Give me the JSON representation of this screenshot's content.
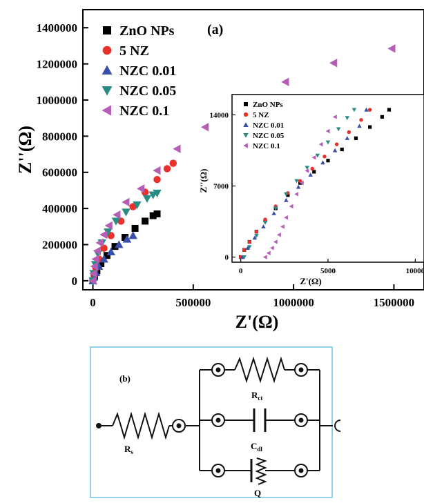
{
  "chart_data": [
    {
      "type": "scatter",
      "panel_label": "(a)",
      "xlabel": "Z'(Ω)",
      "ylabel": "Z''(Ω)",
      "xlim": [
        -50000,
        1650000
      ],
      "ylim": [
        -50000,
        1500000
      ],
      "x_ticks": [
        {
          "value": 0,
          "label": "0"
        },
        {
          "value": 500000,
          "label": "500000"
        },
        {
          "value": 1000000,
          "label": "1000000"
        },
        {
          "value": 1500000,
          "label": "1500000"
        }
      ],
      "y_ticks": [
        {
          "value": 0,
          "label": "0"
        },
        {
          "value": 200000,
          "label": "200000"
        },
        {
          "value": 400000,
          "label": "400000"
        },
        {
          "value": 600000,
          "label": "600000"
        },
        {
          "value": 800000,
          "label": "800000"
        },
        {
          "value": 1000000,
          "label": "1000000"
        },
        {
          "value": 1200000,
          "label": "1200000"
        },
        {
          "value": 1400000,
          "label": "1400000"
        }
      ],
      "legend_position": "top-left",
      "series": [
        {
          "name": "ZnO NPs",
          "marker": "square",
          "color": "#000000",
          "x": [
            0,
            8000,
            20000,
            40000,
            70000,
            110000,
            160000,
            210000,
            260000,
            300000,
            320000
          ],
          "y": [
            0,
            25000,
            55000,
            95000,
            140000,
            190000,
            240000,
            290000,
            330000,
            360000,
            370000
          ]
        },
        {
          "name": "5 NZ",
          "marker": "circle",
          "color": "#e8312a",
          "x": [
            0,
            6000,
            15000,
            30000,
            55000,
            90000,
            140000,
            200000,
            260000,
            320000,
            370000,
            400000
          ],
          "y": [
            0,
            30000,
            70000,
            120000,
            180000,
            250000,
            330000,
            410000,
            490000,
            560000,
            620000,
            650000
          ]
        },
        {
          "name": "NZC 0.01",
          "marker": "triangle-up",
          "color": "#3a4fa8",
          "x": [
            0,
            5000,
            15000,
            30000,
            55000,
            90000,
            130000,
            170000,
            200000
          ],
          "y": [
            0,
            20000,
            45000,
            80000,
            120000,
            160000,
            200000,
            230000,
            250000
          ]
        },
        {
          "name": "NZC 0.05",
          "marker": "triangle-down",
          "color": "#2a8a84",
          "x": [
            0,
            4000,
            12000,
            25000,
            45000,
            75000,
            115000,
            165000,
            220000,
            270000,
            300000,
            320000
          ],
          "y": [
            0,
            40000,
            90000,
            150000,
            210000,
            270000,
            330000,
            380000,
            420000,
            455000,
            475000,
            485000
          ]
        },
        {
          "name": "NZC 0.1",
          "marker": "triangle-left",
          "color": "#b45fb5",
          "x": [
            0,
            3000,
            8000,
            14000,
            22000,
            35000,
            55000,
            80000,
            120000,
            165000,
            240000,
            320000,
            420000,
            560000,
            760000,
            960000,
            1200000,
            1490000
          ],
          "y": [
            0,
            40000,
            80000,
            120000,
            165000,
            210000,
            255000,
            305000,
            365000,
            435000,
            510000,
            610000,
            730000,
            850000,
            975000,
            1100000,
            1205000,
            1285000
          ]
        }
      ]
    },
    {
      "type": "scatter",
      "role": "inset",
      "xlabel": "Z'(Ω)",
      "ylabel": "Z''(Ω)",
      "xlim": [
        -500,
        10500
      ],
      "ylim": [
        -500,
        16000
      ],
      "x_ticks": [
        {
          "value": 0,
          "label": "0"
        },
        {
          "value": 5000,
          "label": "5000"
        },
        {
          "value": 10000,
          "label": "10000"
        }
      ],
      "y_ticks": [
        {
          "value": 0,
          "label": "0"
        },
        {
          "value": 7000,
          "label": "7000"
        },
        {
          "value": 14000,
          "label": "14000"
        }
      ],
      "legend_position": "top-left",
      "series": [
        {
          "name": "ZnO NPs",
          "marker": "square",
          "color": "#000000",
          "x": [
            0,
            200,
            500,
            900,
            1400,
            2000,
            2700,
            3400,
            4200,
            5000,
            5800,
            6600,
            7400,
            8100,
            8500
          ],
          "y": [
            0,
            700,
            1500,
            2500,
            3600,
            4800,
            6100,
            7300,
            8400,
            9500,
            10600,
            11700,
            12800,
            13800,
            14500
          ]
        },
        {
          "name": "5 NZ",
          "marker": "circle",
          "color": "#e8312a",
          "x": [
            0,
            200,
            500,
            900,
            1400,
            2000,
            2700,
            3400,
            4100,
            4800,
            5500,
            6200,
            6900,
            7400
          ],
          "y": [
            0,
            700,
            1500,
            2500,
            3700,
            5000,
            6300,
            7500,
            8700,
            9900,
            11100,
            12300,
            13500,
            14500
          ]
        },
        {
          "name": "NZC 0.01",
          "marker": "triangle-up",
          "color": "#3a4fa8",
          "x": [
            100,
            400,
            800,
            1300,
            1900,
            2600,
            3300,
            4000,
            4700,
            5400,
            6100,
            6800,
            7200
          ],
          "y": [
            0,
            900,
            1900,
            3000,
            4300,
            5600,
            6900,
            8100,
            9300,
            10500,
            11700,
            12900,
            14500
          ]
        },
        {
          "name": "NZC 0.05",
          "marker": "triangle-down",
          "color": "#2a8a84",
          "x": [
            200,
            500,
            900,
            1400,
            2000,
            2600,
            3200,
            3800,
            4400,
            5000,
            5600,
            6100,
            6500
          ],
          "y": [
            0,
            1000,
            2100,
            3400,
            4800,
            6200,
            7500,
            8800,
            10000,
            11300,
            12600,
            13700,
            14500
          ]
        },
        {
          "name": "NZC 0.1",
          "marker": "triangle-left",
          "color": "#b45fb5",
          "x": [
            1400,
            1600,
            1800,
            2000,
            2200,
            2400,
            2600,
            2900,
            3200,
            3500,
            3800,
            4200,
            4600,
            5000,
            5400
          ],
          "y": [
            0,
            400,
            900,
            1500,
            2200,
            3000,
            3900,
            5000,
            6200,
            7300,
            8500,
            9800,
            11100,
            12400,
            13800
          ]
        }
      ]
    }
  ],
  "circuit": {
    "panel_label": "(b)",
    "rs_label": "R",
    "rs_sub": "s",
    "rct_label": "R",
    "rct_sub": "ct",
    "cdl_label": "C",
    "cdl_sub": "dl",
    "q_label": "Q",
    "frame_color": "#6fc3e0"
  }
}
